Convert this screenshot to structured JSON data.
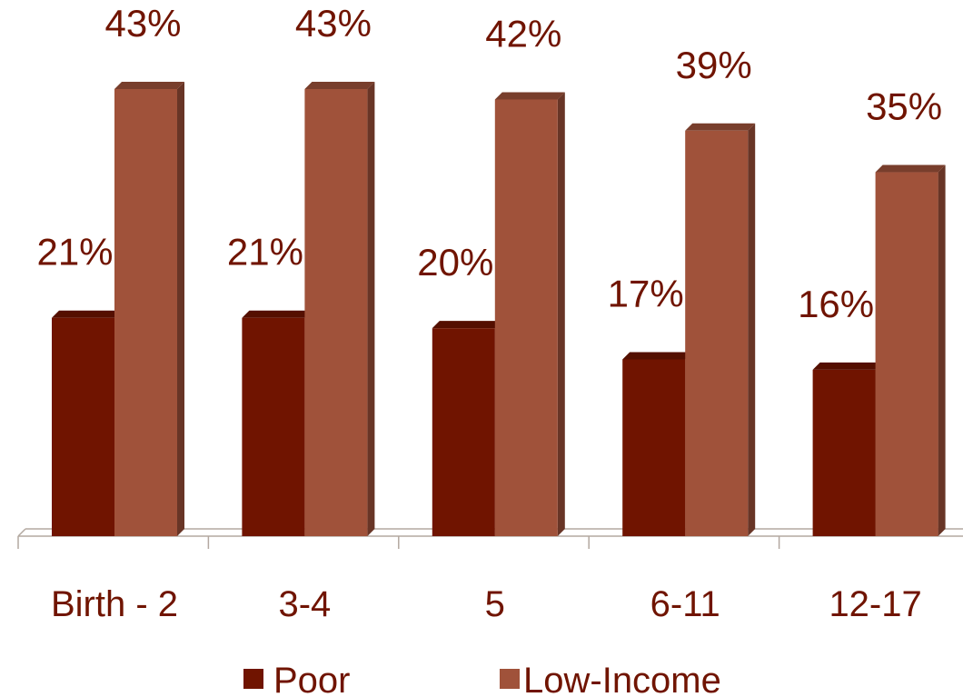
{
  "chart_data": {
    "type": "bar",
    "categories": [
      "Birth - 2",
      "3-4",
      "5",
      "6-11",
      "12-17"
    ],
    "series": [
      {
        "name": "Poor",
        "values": [
          21,
          21,
          20,
          17,
          16
        ],
        "color": "#701400"
      },
      {
        "name": "Low-Income",
        "values": [
          43,
          43,
          42,
          39,
          35
        ],
        "color": "#A0523A"
      }
    ],
    "value_suffix": "%",
    "ylim": [
      0,
      43
    ],
    "grid": false,
    "legend_position": "bottom",
    "label_color": "#701400",
    "axis_color": "#B3A8A0",
    "style": "3d"
  }
}
